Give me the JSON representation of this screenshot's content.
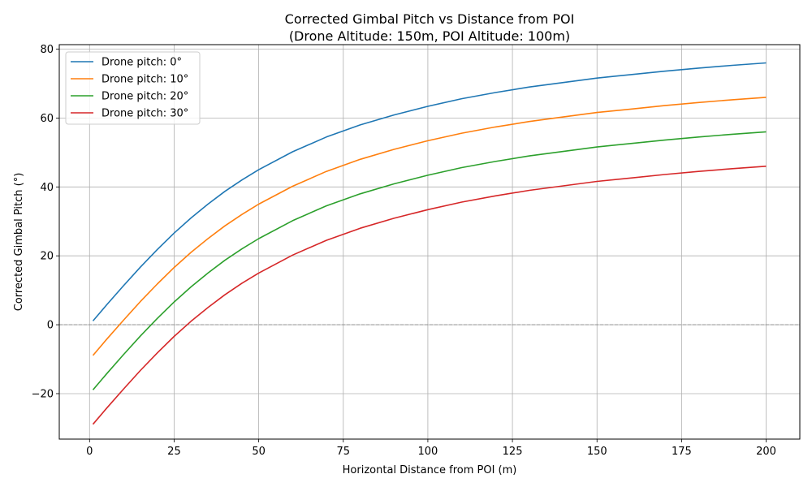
{
  "chart_data": {
    "type": "line",
    "title_line1": "Corrected Gimbal Pitch vs Distance from POI",
    "title_line2": "(Drone Altitude: 150m, POI Altitude: 100m)",
    "xlabel": "Horizontal Distance from POI (m)",
    "ylabel": "Corrected Gimbal Pitch (°)",
    "xlim": [
      -8.95,
      209.95
    ],
    "ylim": [
      -33.2,
      81.3
    ],
    "xticks": [
      0,
      25,
      50,
      75,
      100,
      125,
      150,
      175,
      200
    ],
    "xtick_labels": [
      "0",
      "25",
      "50",
      "75",
      "100",
      "125",
      "150",
      "175",
      "200"
    ],
    "yticks": [
      -20,
      0,
      20,
      40,
      60,
      80
    ],
    "ytick_labels": [
      "−20",
      "0",
      "20",
      "40",
      "60",
      "80"
    ],
    "grid": true,
    "reference_line_y": 0,
    "legend_position": "upper-left",
    "x": [
      1,
      5,
      10,
      15,
      20,
      25,
      30,
      35,
      40,
      45,
      50,
      60,
      70,
      80,
      90,
      100,
      110,
      120,
      130,
      140,
      150,
      160,
      170,
      180,
      190,
      200
    ],
    "series": [
      {
        "name": "Drone pitch: 0°",
        "color": "#1f77b4",
        "values": [
          1.1,
          5.7,
          11.3,
          16.7,
          21.8,
          26.6,
          31.0,
          35.0,
          38.7,
          42.0,
          45.0,
          50.2,
          54.5,
          58.0,
          60.9,
          63.4,
          65.6,
          67.4,
          69.0,
          70.3,
          71.6,
          72.6,
          73.6,
          74.5,
          75.3,
          76.0
        ]
      },
      {
        "name": "Drone pitch: 10°",
        "color": "#ff7f0e",
        "values": [
          -8.9,
          -4.3,
          1.3,
          6.7,
          11.8,
          16.6,
          21.0,
          25.0,
          28.7,
          32.0,
          35.0,
          40.2,
          44.5,
          48.0,
          50.9,
          53.4,
          55.6,
          57.4,
          59.0,
          60.3,
          61.6,
          62.6,
          63.6,
          64.5,
          65.3,
          66.0
        ]
      },
      {
        "name": "Drone pitch: 20°",
        "color": "#2ca02c",
        "values": [
          -18.9,
          -14.3,
          -8.7,
          -3.3,
          1.8,
          6.6,
          11.0,
          15.0,
          18.7,
          22.0,
          25.0,
          30.2,
          34.5,
          38.0,
          40.9,
          43.4,
          45.6,
          47.4,
          49.0,
          50.3,
          51.6,
          52.6,
          53.6,
          54.5,
          55.3,
          56.0
        ]
      },
      {
        "name": "Drone pitch: 30°",
        "color": "#d62728",
        "values": [
          -28.9,
          -24.3,
          -18.7,
          -13.3,
          -8.2,
          -3.4,
          1.0,
          5.0,
          8.7,
          12.0,
          15.0,
          20.2,
          24.5,
          28.0,
          30.9,
          33.4,
          35.6,
          37.4,
          39.0,
          40.3,
          41.6,
          42.6,
          43.6,
          44.5,
          45.3,
          46.0
        ]
      }
    ]
  }
}
